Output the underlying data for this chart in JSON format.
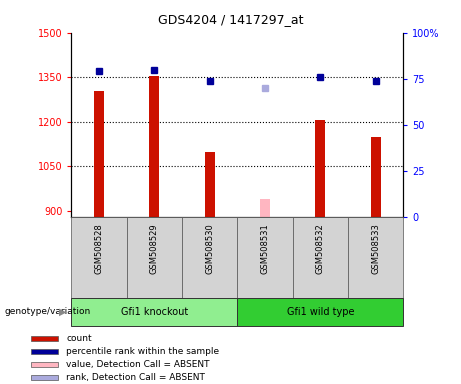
{
  "title": "GDS4204 / 1417297_at",
  "samples": [
    "GSM508528",
    "GSM508529",
    "GSM508530",
    "GSM508531",
    "GSM508532",
    "GSM508533"
  ],
  "count_values": [
    1305,
    1355,
    1100,
    null,
    1205,
    1150
  ],
  "count_absent_values": [
    null,
    null,
    null,
    940,
    null,
    null
  ],
  "percentile_values": [
    79,
    80,
    74,
    null,
    76,
    74
  ],
  "percentile_absent_values": [
    null,
    null,
    null,
    70,
    null,
    null
  ],
  "groups": [
    {
      "name": "Gfi1 knockout",
      "start": 0,
      "end": 3,
      "color": "#90EE90"
    },
    {
      "name": "Gfi1 wild type",
      "start": 3,
      "end": 6,
      "color": "#32CD32"
    }
  ],
  "ylim_left": [
    880,
    1500
  ],
  "ylim_right": [
    0,
    100
  ],
  "yticks_left": [
    900,
    1050,
    1200,
    1350,
    1500
  ],
  "yticks_right": [
    0,
    25,
    50,
    75,
    100
  ],
  "bar_color": "#CC1100",
  "bar_absent_color": "#FFB6C1",
  "dot_color": "#000099",
  "dot_absent_color": "#AAAADD",
  "grid_lines": [
    1050,
    1200,
    1350
  ],
  "legend_items": [
    {
      "label": "count",
      "color": "#CC1100"
    },
    {
      "label": "percentile rank within the sample",
      "color": "#000099"
    },
    {
      "label": "value, Detection Call = ABSENT",
      "color": "#FFB6C1"
    },
    {
      "label": "rank, Detection Call = ABSENT",
      "color": "#AAAADD"
    }
  ]
}
